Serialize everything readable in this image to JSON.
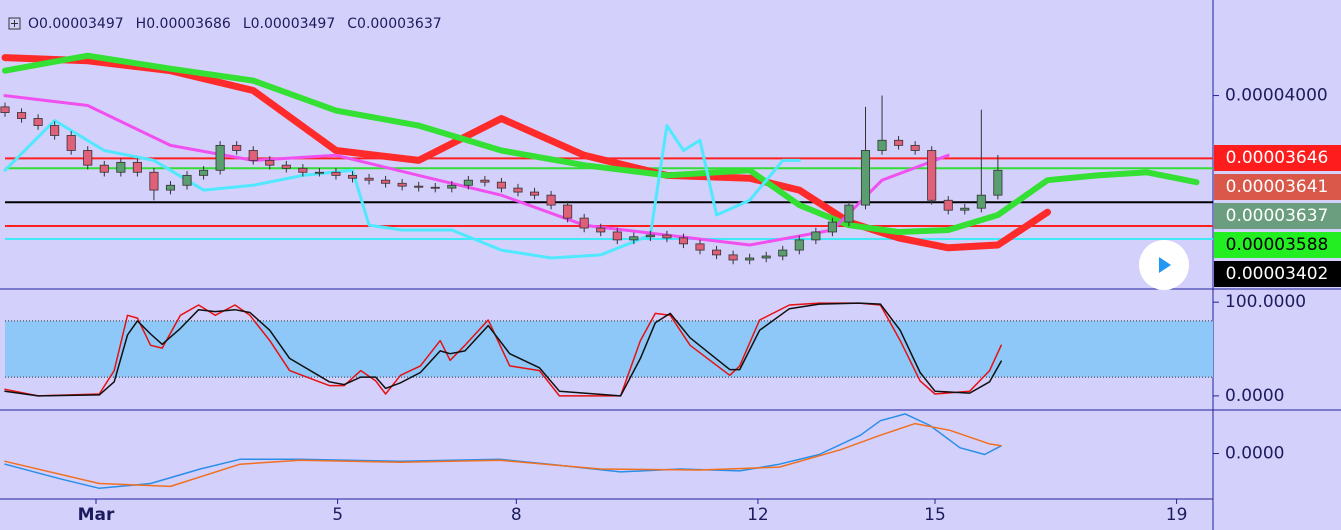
{
  "chart_data": [
    {
      "type": "candlestick",
      "ohlc_legend": [
        {
          "label": "O",
          "value": 3.497e-05
        },
        {
          "label": "H",
          "value": 3.686e-05
        },
        {
          "label": "L",
          "value": 3.497e-05
        },
        {
          "label": "C",
          "value": 3.637e-05
        }
      ],
      "open": [
        3.96e-05,
        3.94e-05,
        3.919e-05,
        3.894e-05,
        3.859e-05,
        3.806e-05,
        3.754e-05,
        3.729e-05,
        3.764e-05,
        3.729e-05,
        3.666e-05,
        3.683e-05,
        3.718e-05,
        3.736e-05,
        3.824e-05,
        3.806e-05,
        3.771e-05,
        3.754e-05,
        3.743e-05,
        3.729e-05,
        3.729e-05,
        3.718e-05,
        3.708e-05,
        3.701e-05,
        3.69e-05,
        3.68e-05,
        3.676e-05,
        3.673e-05,
        3.683e-05,
        3.701e-05,
        3.694e-05,
        3.673e-05,
        3.659e-05,
        3.648e-05,
        3.613e-05,
        3.567e-05,
        3.532e-05,
        3.518e-05,
        3.49e-05,
        3.501e-05,
        3.507e-05,
        3.497e-05,
        3.476e-05,
        3.454e-05,
        3.437e-05,
        3.419e-05,
        3.426e-05,
        3.433e-05,
        3.454e-05,
        3.49e-05,
        3.518e-05,
        3.553e-05,
        3.613e-05,
        3.806e-05,
        3.842e-05,
        3.824e-05,
        3.806e-05,
        3.63e-05,
        3.595e-05,
        3.602e-05,
        3.648e-05
      ],
      "high": [
        3.975e-05,
        3.955e-05,
        3.934e-05,
        3.909e-05,
        3.874e-05,
        3.821e-05,
        3.769e-05,
        3.779e-05,
        3.779e-05,
        3.744e-05,
        3.698e-05,
        3.733e-05,
        3.751e-05,
        3.839e-05,
        3.839e-05,
        3.821e-05,
        3.786e-05,
        3.769e-05,
        3.758e-05,
        3.744e-05,
        3.744e-05,
        3.733e-05,
        3.723e-05,
        3.716e-05,
        3.705e-05,
        3.695e-05,
        3.691e-05,
        3.698e-05,
        3.716e-05,
        3.716e-05,
        3.709e-05,
        3.688e-05,
        3.674e-05,
        3.663e-05,
        3.628e-05,
        3.582e-05,
        3.547e-05,
        3.533e-05,
        3.516e-05,
        3.522e-05,
        3.522e-05,
        3.512e-05,
        3.491e-05,
        3.469e-05,
        3.452e-05,
        3.441e-05,
        3.448e-05,
        3.469e-05,
        3.505e-05,
        3.533e-05,
        3.568e-05,
        3.628e-05,
        3.96e-05,
        4e-05,
        3.857e-05,
        3.839e-05,
        3.821e-05,
        3.645e-05,
        3.617e-05,
        3.95e-05,
        3.79e-05
      ],
      "low": [
        3.925e-05,
        3.904e-05,
        3.879e-05,
        3.844e-05,
        3.791e-05,
        3.739e-05,
        3.714e-05,
        3.714e-05,
        3.714e-05,
        3.63e-05,
        3.651e-05,
        3.668e-05,
        3.703e-05,
        3.721e-05,
        3.791e-05,
        3.756e-05,
        3.739e-05,
        3.728e-05,
        3.714e-05,
        3.714e-05,
        3.703e-05,
        3.693e-05,
        3.686e-05,
        3.675e-05,
        3.665e-05,
        3.661e-05,
        3.658e-05,
        3.658e-05,
        3.668e-05,
        3.679e-05,
        3.658e-05,
        3.644e-05,
        3.633e-05,
        3.598e-05,
        3.552e-05,
        3.517e-05,
        3.503e-05,
        3.475e-05,
        3.475e-05,
        3.486e-05,
        3.482e-05,
        3.461e-05,
        3.439e-05,
        3.422e-05,
        3.404e-05,
        3.404e-05,
        3.411e-05,
        3.418e-05,
        3.439e-05,
        3.475e-05,
        3.503e-05,
        3.538e-05,
        3.598e-05,
        3.791e-05,
        3.809e-05,
        3.791e-05,
        3.615e-05,
        3.58e-05,
        3.58e-05,
        3.587e-05,
        3.633e-05
      ],
      "close": [
        3.94e-05,
        3.919e-05,
        3.894e-05,
        3.859e-05,
        3.806e-05,
        3.754e-05,
        3.729e-05,
        3.764e-05,
        3.729e-05,
        3.666e-05,
        3.683e-05,
        3.718e-05,
        3.736e-05,
        3.824e-05,
        3.806e-05,
        3.771e-05,
        3.754e-05,
        3.743e-05,
        3.729e-05,
        3.729e-05,
        3.718e-05,
        3.708e-05,
        3.701e-05,
        3.69e-05,
        3.68e-05,
        3.676e-05,
        3.673e-05,
        3.683e-05,
        3.701e-05,
        3.694e-05,
        3.673e-05,
        3.659e-05,
        3.648e-05,
        3.613e-05,
        3.567e-05,
        3.532e-05,
        3.518e-05,
        3.49e-05,
        3.501e-05,
        3.507e-05,
        3.497e-05,
        3.476e-05,
        3.454e-05,
        3.437e-05,
        3.419e-05,
        3.426e-05,
        3.433e-05,
        3.454e-05,
        3.49e-05,
        3.518e-05,
        3.553e-05,
        3.613e-05,
        3.806e-05,
        3.842e-05,
        3.824e-05,
        3.806e-05,
        3.63e-05,
        3.595e-05,
        3.602e-05,
        3.648e-05,
        3.736e-05
      ],
      "up_color": "#5a9e6f",
      "down_color": "#e0607a",
      "lines": [
        {
          "color": "#ff2a2a",
          "width": 7,
          "x": [
            0,
            5,
            10,
            15,
            20,
            25,
            30,
            35,
            40,
            45,
            48,
            51,
            54,
            57,
            60,
            63
          ],
          "values": [
            4.134e-05,
            4.123e-05,
            4.088e-05,
            4.018e-05,
            3.806e-05,
            3.771e-05,
            3.919e-05,
            3.789e-05,
            3.718e-05,
            3.708e-05,
            3.666e-05,
            3.553e-05,
            3.497e-05,
            3.462e-05,
            3.472e-05,
            3.588e-05
          ]
        },
        {
          "color": "#33e033",
          "width": 6,
          "x": [
            0,
            5,
            10,
            15,
            20,
            25,
            30,
            35,
            40,
            45,
            48,
            51,
            54,
            57,
            60,
            63,
            66,
            69,
            72
          ],
          "values": [
            4.088e-05,
            4.141e-05,
            4.095e-05,
            4.053e-05,
            3.947e-05,
            3.894e-05,
            3.806e-05,
            3.754e-05,
            3.718e-05,
            3.736e-05,
            3.613e-05,
            3.542e-05,
            3.518e-05,
            3.525e-05,
            3.578e-05,
            3.701e-05,
            3.718e-05,
            3.729e-05,
            3.694e-05
          ]
        },
        {
          "color": "#50e8ff",
          "width": 3,
          "x": [
            0,
            3,
            6,
            9,
            12,
            15,
            18,
            21,
            22,
            24,
            27,
            30,
            33,
            36,
            39,
            40,
            41,
            42,
            43,
            45,
            47,
            48
          ],
          "values": [
            3.736e-05,
            3.912e-05,
            3.806e-05,
            3.771e-05,
            3.666e-05,
            3.683e-05,
            3.718e-05,
            3.736e-05,
            3.542e-05,
            3.525e-05,
            3.525e-05,
            3.454e-05,
            3.426e-05,
            3.437e-05,
            3.507e-05,
            3.894e-05,
            3.806e-05,
            3.842e-05,
            3.578e-05,
            3.63e-05,
            3.771e-05,
            3.771e-05
          ]
        },
        {
          "color": "#f050f0",
          "width": 3,
          "x": [
            0,
            5,
            10,
            15,
            20,
            25,
            30,
            35,
            40,
            45,
            50,
            53,
            57
          ],
          "values": [
            4e-05,
            3.965e-05,
            3.824e-05,
            3.771e-05,
            3.789e-05,
            3.718e-05,
            3.648e-05,
            3.542e-05,
            3.507e-05,
            3.472e-05,
            3.525e-05,
            3.701e-05,
            3.789e-05
          ]
        }
      ],
      "price_lines": [
        {
          "value": 3.778e-05,
          "color": "#ff2020"
        },
        {
          "value": 3.743e-05,
          "color": "#33dd33"
        },
        {
          "value": 3.623e-05,
          "color": "#000000"
        },
        {
          "value": 3.539e-05,
          "color": "#ff2020"
        },
        {
          "value": 3.493e-05,
          "color": "#40e8f8"
        }
      ],
      "price_labels": [
        {
          "value": 3.646e-05,
          "color": "#ff1c1c",
          "text_color": "#ffffff"
        },
        {
          "value": 3.641e-05,
          "color": "#d9584a",
          "text_color": "#ffffff"
        },
        {
          "value": 3.637e-05,
          "color": "#6b9e7f",
          "text_color": "#ffffff"
        },
        {
          "value": 3.588e-05,
          "color": "#22ee22",
          "text_color": "#000000"
        },
        {
          "value": 3.402e-05,
          "color": "#000000",
          "text_color": "#ffffff"
        }
      ],
      "xlim": [
        0,
        73
      ],
      "xticks": [
        {
          "value": 5.5,
          "label": "Mar"
        },
        {
          "value": 20.1,
          "label": "5"
        },
        {
          "value": 30.9,
          "label": "8"
        },
        {
          "value": 45.5,
          "label": "12"
        },
        {
          "value": 56.2,
          "label": "15"
        },
        {
          "value": 70.8,
          "label": "19"
        }
      ],
      "ylim": [
        3.32e-05,
        4.32e-05
      ],
      "yticks": [
        {
          "value": 4e-05,
          "label": "0.00004000"
        }
      ]
    },
    {
      "type": "line",
      "band": [
        20,
        80
      ],
      "band_color": "#8ec8f8",
      "series": [
        {
          "color": "#e81010",
          "x": [
            0,
            2,
            5.7,
            6.6,
            7.4,
            8,
            8.8,
            9.5,
            10.6,
            11.7,
            12.7,
            13.9,
            14.8,
            16,
            17.2,
            19.6,
            20.5,
            21.5,
            22.4,
            23,
            23.9,
            25.1,
            26.3,
            26.9,
            27.8,
            29.2,
            30.5,
            32.3,
            33.5,
            37.2,
            38.4,
            39.3,
            40.2,
            41.4,
            42.6,
            43.8,
            44.4,
            45.6,
            47.4,
            49.2,
            51.6,
            52.9,
            54.1,
            55.3,
            56.2,
            58.3,
            59.5,
            60.2
          ],
          "values": [
            7,
            0,
            2,
            27,
            86,
            83,
            54,
            51,
            86,
            97,
            86,
            97,
            86,
            59,
            27,
            11,
            11,
            27,
            16,
            2,
            22,
            32,
            59,
            38,
            54,
            81,
            32,
            27,
            0,
            0,
            59,
            88,
            86,
            54,
            38,
            22,
            32,
            81,
            97,
            99,
            99,
            97,
            59,
            16,
            2,
            5,
            27,
            54
          ]
        },
        {
          "color": "#101010",
          "x": [
            0,
            2,
            5.7,
            6.6,
            7.4,
            8,
            8.8,
            9.5,
            10.6,
            11.7,
            12.7,
            13.9,
            14.8,
            16,
            17.2,
            19.6,
            20.5,
            21.5,
            22.4,
            23,
            23.9,
            25.1,
            26.3,
            26.9,
            27.8,
            29.2,
            30.5,
            32.3,
            33.5,
            37.2,
            38.4,
            39.3,
            40.2,
            41.4,
            42.6,
            43.8,
            44.4,
            45.6,
            47.4,
            49.2,
            51.6,
            52.9,
            54.1,
            55.3,
            56.2,
            58.3,
            59.5,
            60.2
          ],
          "values": [
            5,
            0,
            1,
            15,
            65,
            80,
            66,
            55,
            72,
            92,
            90,
            92,
            89,
            70,
            40,
            15,
            12,
            20,
            20,
            8,
            14,
            25,
            48,
            45,
            48,
            75,
            45,
            30,
            5,
            0,
            40,
            78,
            88,
            62,
            45,
            28,
            28,
            70,
            93,
            98,
            99,
            98,
            70,
            25,
            5,
            3,
            15,
            37
          ]
        }
      ],
      "ylim": [
        -14,
        113
      ],
      "yticks": [
        {
          "value": 100,
          "label": "100.0000"
        },
        {
          "value": 0,
          "label": "0.0000"
        }
      ]
    },
    {
      "type": "line",
      "series": [
        {
          "color": "#2a8ee8",
          "x": [
            0,
            3.3,
            5.7,
            8.8,
            11.8,
            14.2,
            17.8,
            23.9,
            29.9,
            32.9,
            37.2,
            40.8,
            44.4,
            46.8,
            49.2,
            51.7,
            52.9,
            54.4,
            55.9,
            57.7,
            59.2,
            60.2
          ],
          "values": [
            -1.1e-08,
            -2.6e-08,
            -3.6e-08,
            -3.1e-08,
            -1.6e-08,
            -6e-09,
            -6e-09,
            -8e-09,
            -6e-09,
            -1.1e-08,
            -1.9e-08,
            -1.6e-08,
            -1.8e-08,
            -1.1e-08,
            -1e-09,
            1.9e-08,
            3.4e-08,
            4.1e-08,
            2.9e-08,
            6e-09,
            -1e-09,
            8e-09
          ]
        },
        {
          "color": "#f07020",
          "x": [
            0,
            5.7,
            10,
            14.2,
            17.8,
            23.9,
            29.9,
            36,
            42,
            46.8,
            50.5,
            52.9,
            55,
            57.1,
            59.5,
            60.2
          ],
          "values": [
            -8e-09,
            -3.1e-08,
            -3.4e-08,
            -1.1e-08,
            -7e-09,
            -9e-09,
            -7e-09,
            -1.6e-08,
            -1.7e-08,
            -1.4e-08,
            4e-09,
            1.9e-08,
            3.1e-08,
            2.4e-08,
            1e-08,
            8e-09
          ]
        }
      ],
      "ylim": [
        -4.6e-08,
        4.4e-08
      ],
      "yticks": [
        {
          "value": 0,
          "label": "0.0000"
        }
      ]
    }
  ]
}
